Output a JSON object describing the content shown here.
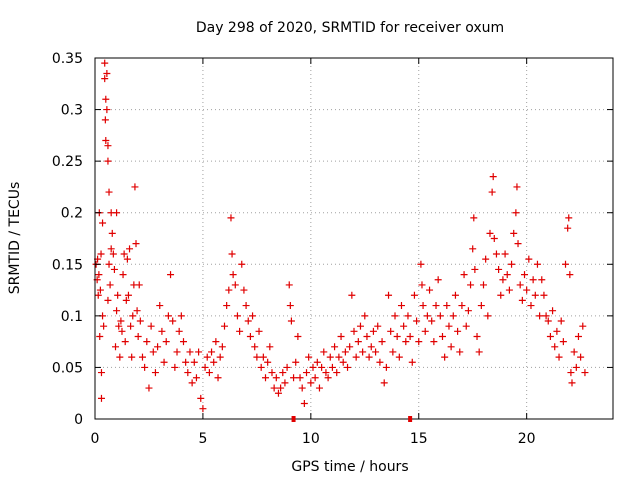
{
  "chart_data": {
    "type": "scatter",
    "title": "Day 298 of 2020, SRMTID for receiver oxum",
    "xlabel": "GPS time / hours",
    "ylabel": "SRMTID / TECUs",
    "xlim": [
      0,
      24
    ],
    "ylim": [
      0,
      0.35
    ],
    "x_ticks": [
      0,
      5,
      10,
      15,
      20
    ],
    "y_ticks": [
      0,
      0.05,
      0.1,
      0.15,
      0.2,
      0.25,
      0.3,
      0.35
    ],
    "x_tick_labels": [
      "0",
      "5",
      "10",
      "15",
      "20"
    ],
    "y_tick_labels": [
      "0",
      "0.05",
      "0.1",
      "0.15",
      "0.2",
      "0.25",
      "0.3",
      "0.35"
    ],
    "grid": true,
    "marker": "+",
    "color": "#e00000",
    "series": [
      {
        "name": "SRMTID",
        "points": [
          [
            0.05,
            0.15
          ],
          [
            0.1,
            0.135
          ],
          [
            0.12,
            0.155
          ],
          [
            0.15,
            0.12
          ],
          [
            0.18,
            0.14
          ],
          [
            0.2,
            0.2
          ],
          [
            0.22,
            0.08
          ],
          [
            0.25,
            0.125
          ],
          [
            0.28,
            0.16
          ],
          [
            0.3,
            0.045
          ],
          [
            0.3,
            0.02
          ],
          [
            0.35,
            0.1
          ],
          [
            0.35,
            0.19
          ],
          [
            0.4,
            0.09
          ],
          [
            0.45,
            0.345
          ],
          [
            0.45,
            0.33
          ],
          [
            0.48,
            0.29
          ],
          [
            0.5,
            0.31
          ],
          [
            0.5,
            0.27
          ],
          [
            0.55,
            0.335
          ],
          [
            0.55,
            0.3
          ],
          [
            0.6,
            0.265
          ],
          [
            0.6,
            0.25
          ],
          [
            0.6,
            0.115
          ],
          [
            0.65,
            0.22
          ],
          [
            0.65,
            0.15
          ],
          [
            0.7,
            0.13
          ],
          [
            0.75,
            0.165
          ],
          [
            0.75,
            0.2
          ],
          [
            0.8,
            0.18
          ],
          [
            0.85,
            0.16
          ],
          [
            0.9,
            0.145
          ],
          [
            0.95,
            0.07
          ],
          [
            1.0,
            0.105
          ],
          [
            1.0,
            0.2
          ],
          [
            1.05,
            0.12
          ],
          [
            1.1,
            0.09
          ],
          [
            1.15,
            0.06
          ],
          [
            1.2,
            0.095
          ],
          [
            1.25,
            0.085
          ],
          [
            1.3,
            0.14
          ],
          [
            1.35,
            0.16
          ],
          [
            1.4,
            0.075
          ],
          [
            1.45,
            0.115
          ],
          [
            1.5,
            0.155
          ],
          [
            1.55,
            0.12
          ],
          [
            1.6,
            0.165
          ],
          [
            1.65,
            0.09
          ],
          [
            1.7,
            0.06
          ],
          [
            1.75,
            0.1
          ],
          [
            1.8,
            0.13
          ],
          [
            1.85,
            0.225
          ],
          [
            1.9,
            0.17
          ],
          [
            1.95,
            0.105
          ],
          [
            2.0,
            0.08
          ],
          [
            2.05,
            0.13
          ],
          [
            2.1,
            0.095
          ],
          [
            2.2,
            0.06
          ],
          [
            2.3,
            0.05
          ],
          [
            2.4,
            0.075
          ],
          [
            2.5,
            0.03
          ],
          [
            2.6,
            0.09
          ],
          [
            2.7,
            0.065
          ],
          [
            2.8,
            0.045
          ],
          [
            2.9,
            0.07
          ],
          [
            3.0,
            0.11
          ],
          [
            3.1,
            0.085
          ],
          [
            3.2,
            0.055
          ],
          [
            3.3,
            0.075
          ],
          [
            3.4,
            0.1
          ],
          [
            3.5,
            0.14
          ],
          [
            3.6,
            0.095
          ],
          [
            3.7,
            0.05
          ],
          [
            3.8,
            0.065
          ],
          [
            3.9,
            0.085
          ],
          [
            4.0,
            0.1
          ],
          [
            4.1,
            0.075
          ],
          [
            4.2,
            0.055
          ],
          [
            4.3,
            0.045
          ],
          [
            4.4,
            0.065
          ],
          [
            4.5,
            0.035
          ],
          [
            4.6,
            0.055
          ],
          [
            4.7,
            0.04
          ],
          [
            4.8,
            0.065
          ],
          [
            4.9,
            0.02
          ],
          [
            5.0,
            0.01
          ],
          [
            5.1,
            0.05
          ],
          [
            5.2,
            0.06
          ],
          [
            5.3,
            0.045
          ],
          [
            5.4,
            0.065
          ],
          [
            5.5,
            0.055
          ],
          [
            5.6,
            0.075
          ],
          [
            5.7,
            0.04
          ],
          [
            5.8,
            0.06
          ],
          [
            5.9,
            0.07
          ],
          [
            6.0,
            0.09
          ],
          [
            6.1,
            0.11
          ],
          [
            6.2,
            0.125
          ],
          [
            6.3,
            0.195
          ],
          [
            6.35,
            0.16
          ],
          [
            6.4,
            0.14
          ],
          [
            6.5,
            0.13
          ],
          [
            6.6,
            0.1
          ],
          [
            6.7,
            0.085
          ],
          [
            6.8,
            0.15
          ],
          [
            6.9,
            0.125
          ],
          [
            7.0,
            0.11
          ],
          [
            7.1,
            0.095
          ],
          [
            7.2,
            0.08
          ],
          [
            7.3,
            0.1
          ],
          [
            7.4,
            0.07
          ],
          [
            7.5,
            0.06
          ],
          [
            7.6,
            0.085
          ],
          [
            7.7,
            0.05
          ],
          [
            7.8,
            0.06
          ],
          [
            7.9,
            0.04
          ],
          [
            8.0,
            0.055
          ],
          [
            8.1,
            0.07
          ],
          [
            8.2,
            0.045
          ],
          [
            8.3,
            0.03
          ],
          [
            8.4,
            0.04
          ],
          [
            8.5,
            0.025
          ],
          [
            8.6,
            0.03
          ],
          [
            8.7,
            0.045
          ],
          [
            8.8,
            0.035
          ],
          [
            8.9,
            0.05
          ],
          [
            9.0,
            0.13
          ],
          [
            9.05,
            0.11
          ],
          [
            9.1,
            0.095
          ],
          [
            9.2,
            0.04
          ],
          [
            9.3,
            0.055
          ],
          [
            9.4,
            0.08
          ],
          [
            9.5,
            0.04
          ],
          [
            9.6,
            0.03
          ],
          [
            9.7,
            0.015
          ],
          [
            9.8,
            0.045
          ],
          [
            9.9,
            0.06
          ],
          [
            10.0,
            0.035
          ],
          [
            10.1,
            0.05
          ],
          [
            10.2,
            0.04
          ],
          [
            10.3,
            0.055
          ],
          [
            10.4,
            0.03
          ],
          [
            10.5,
            0.05
          ],
          [
            10.6,
            0.065
          ],
          [
            10.7,
            0.045
          ],
          [
            10.8,
            0.04
          ],
          [
            10.9,
            0.06
          ],
          [
            11.0,
            0.05
          ],
          [
            11.1,
            0.07
          ],
          [
            11.2,
            0.045
          ],
          [
            11.3,
            0.06
          ],
          [
            11.4,
            0.08
          ],
          [
            11.5,
            0.055
          ],
          [
            11.6,
            0.065
          ],
          [
            11.7,
            0.05
          ],
          [
            11.8,
            0.07
          ],
          [
            11.9,
            0.12
          ],
          [
            12.0,
            0.085
          ],
          [
            12.1,
            0.06
          ],
          [
            12.2,
            0.075
          ],
          [
            12.3,
            0.09
          ],
          [
            12.4,
            0.065
          ],
          [
            12.5,
            0.1
          ],
          [
            12.6,
            0.08
          ],
          [
            12.7,
            0.06
          ],
          [
            12.8,
            0.07
          ],
          [
            12.9,
            0.085
          ],
          [
            13.0,
            0.065
          ],
          [
            13.1,
            0.09
          ],
          [
            13.2,
            0.055
          ],
          [
            13.3,
            0.075
          ],
          [
            13.4,
            0.035
          ],
          [
            13.5,
            0.05
          ],
          [
            13.6,
            0.12
          ],
          [
            13.7,
            0.085
          ],
          [
            13.8,
            0.065
          ],
          [
            13.9,
            0.1
          ],
          [
            14.0,
            0.08
          ],
          [
            14.1,
            0.06
          ],
          [
            14.2,
            0.11
          ],
          [
            14.3,
            0.09
          ],
          [
            14.4,
            0.075
          ],
          [
            14.5,
            0.1
          ],
          [
            14.6,
            0.08
          ],
          [
            14.7,
            0.055
          ],
          [
            14.8,
            0.12
          ],
          [
            14.9,
            0.095
          ],
          [
            15.0,
            0.075
          ],
          [
            15.1,
            0.15
          ],
          [
            15.15,
            0.13
          ],
          [
            15.2,
            0.11
          ],
          [
            15.3,
            0.085
          ],
          [
            15.4,
            0.1
          ],
          [
            15.5,
            0.125
          ],
          [
            15.6,
            0.095
          ],
          [
            15.7,
            0.075
          ],
          [
            15.8,
            0.11
          ],
          [
            15.9,
            0.135
          ],
          [
            16.0,
            0.1
          ],
          [
            16.1,
            0.08
          ],
          [
            16.2,
            0.06
          ],
          [
            16.3,
            0.11
          ],
          [
            16.4,
            0.09
          ],
          [
            16.5,
            0.07
          ],
          [
            16.6,
            0.1
          ],
          [
            16.7,
            0.12
          ],
          [
            16.8,
            0.085
          ],
          [
            16.9,
            0.065
          ],
          [
            17.0,
            0.11
          ],
          [
            17.1,
            0.14
          ],
          [
            17.2,
            0.09
          ],
          [
            17.3,
            0.105
          ],
          [
            17.4,
            0.13
          ],
          [
            17.5,
            0.165
          ],
          [
            17.55,
            0.195
          ],
          [
            17.6,
            0.145
          ],
          [
            17.7,
            0.08
          ],
          [
            17.8,
            0.065
          ],
          [
            17.9,
            0.11
          ],
          [
            18.0,
            0.13
          ],
          [
            18.1,
            0.155
          ],
          [
            18.2,
            0.1
          ],
          [
            18.3,
            0.18
          ],
          [
            18.4,
            0.22
          ],
          [
            18.45,
            0.235
          ],
          [
            18.5,
            0.175
          ],
          [
            18.6,
            0.16
          ],
          [
            18.7,
            0.145
          ],
          [
            18.8,
            0.12
          ],
          [
            18.9,
            0.135
          ],
          [
            19.0,
            0.16
          ],
          [
            19.1,
            0.14
          ],
          [
            19.2,
            0.125
          ],
          [
            19.3,
            0.15
          ],
          [
            19.4,
            0.18
          ],
          [
            19.5,
            0.2
          ],
          [
            19.55,
            0.225
          ],
          [
            19.6,
            0.17
          ],
          [
            19.7,
            0.13
          ],
          [
            19.8,
            0.115
          ],
          [
            19.9,
            0.14
          ],
          [
            20.0,
            0.125
          ],
          [
            20.1,
            0.155
          ],
          [
            20.2,
            0.11
          ],
          [
            20.3,
            0.135
          ],
          [
            20.4,
            0.12
          ],
          [
            20.5,
            0.15
          ],
          [
            20.6,
            0.1
          ],
          [
            20.7,
            0.135
          ],
          [
            20.8,
            0.12
          ],
          [
            20.9,
            0.1
          ],
          [
            21.0,
            0.095
          ],
          [
            21.1,
            0.08
          ],
          [
            21.2,
            0.105
          ],
          [
            21.3,
            0.07
          ],
          [
            21.4,
            0.085
          ],
          [
            21.5,
            0.06
          ],
          [
            21.6,
            0.095
          ],
          [
            21.7,
            0.075
          ],
          [
            21.8,
            0.15
          ],
          [
            21.9,
            0.185
          ],
          [
            21.95,
            0.195
          ],
          [
            22.0,
            0.14
          ],
          [
            22.05,
            0.045
          ],
          [
            22.1,
            0.035
          ],
          [
            22.2,
            0.065
          ],
          [
            22.3,
            0.05
          ],
          [
            22.4,
            0.08
          ],
          [
            22.5,
            0.06
          ],
          [
            22.6,
            0.09
          ],
          [
            22.7,
            0.045
          ]
        ]
      }
    ],
    "x_axis_markers": [
      9.2,
      14.6
    ]
  }
}
